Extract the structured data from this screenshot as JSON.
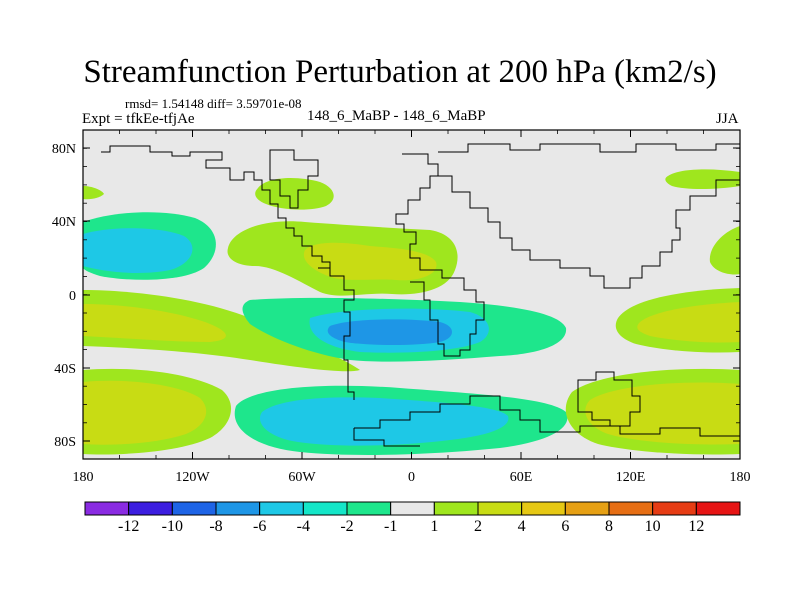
{
  "title": "Streamfunction Perturbation at 200 hPa (km2/s)",
  "stats_line": "rmsd= 1.54148 diff= 3.59701e-08",
  "expt_label": "Expt = tfkEe-tfjAe",
  "center_label": "148_6_MaBP - 148_6_MaBP",
  "season": "JJA",
  "y_ticks": [
    "80N",
    "40N",
    "0",
    "40S",
    "80S"
  ],
  "x_ticks": [
    "180",
    "120W",
    "60W",
    "0",
    "60E",
    "120E",
    "180"
  ],
  "colorbar": {
    "colors": [
      "#8a2be2",
      "#3c1ee0",
      "#1e64e6",
      "#1e96e6",
      "#1ec8e6",
      "#14e6c8",
      "#1ee68c",
      "#e8e8e8",
      "#9fe61e",
      "#c8dc14",
      "#e6c814",
      "#e6a014",
      "#e66e14",
      "#e63c14",
      "#e61414"
    ],
    "labels": [
      "-12",
      "-10",
      "-8",
      "-6",
      "-4",
      "-2",
      "-1",
      "1",
      "2",
      "4",
      "6",
      "8",
      "10",
      "12"
    ]
  },
  "fill_colors": {
    "background": "#e8e8e8",
    "level_pos_1": "#9fe61e",
    "level_pos_2": "#c8dc14",
    "level_neg_1": "#1ee68c",
    "level_neg_2": "#1ec8e6",
    "level_neg_3": "#1e96e6"
  }
}
